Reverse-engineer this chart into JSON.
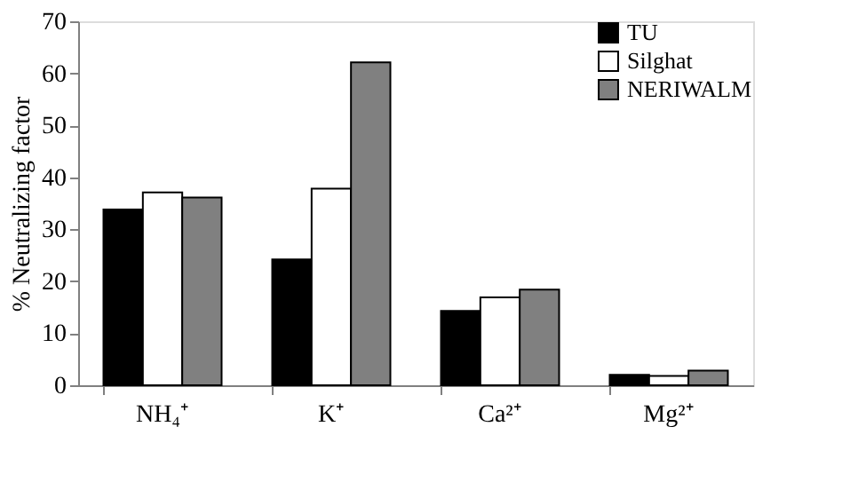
{
  "chart_data": {
    "type": "bar",
    "ylabel": "% Neutralizing factor",
    "categories": [
      "NH₄⁺",
      "K⁺",
      "Ca²⁺",
      "Mg²⁺"
    ],
    "series": [
      {
        "name": "TU",
        "color": "#000000",
        "values": [
          33.8,
          24.2,
          14.3,
          2.0
        ]
      },
      {
        "name": "Silghat",
        "color": "#ffffff",
        "values": [
          37.1,
          37.8,
          16.9,
          1.8
        ]
      },
      {
        "name": "NERIWALM",
        "color": "#808080",
        "values": [
          36.1,
          62.1,
          18.4,
          2.8
        ]
      }
    ],
    "ylim": [
      0,
      70
    ],
    "yticks": [
      0,
      10,
      20,
      30,
      40,
      50,
      60,
      70
    ],
    "grid": false,
    "legend": "top right"
  }
}
